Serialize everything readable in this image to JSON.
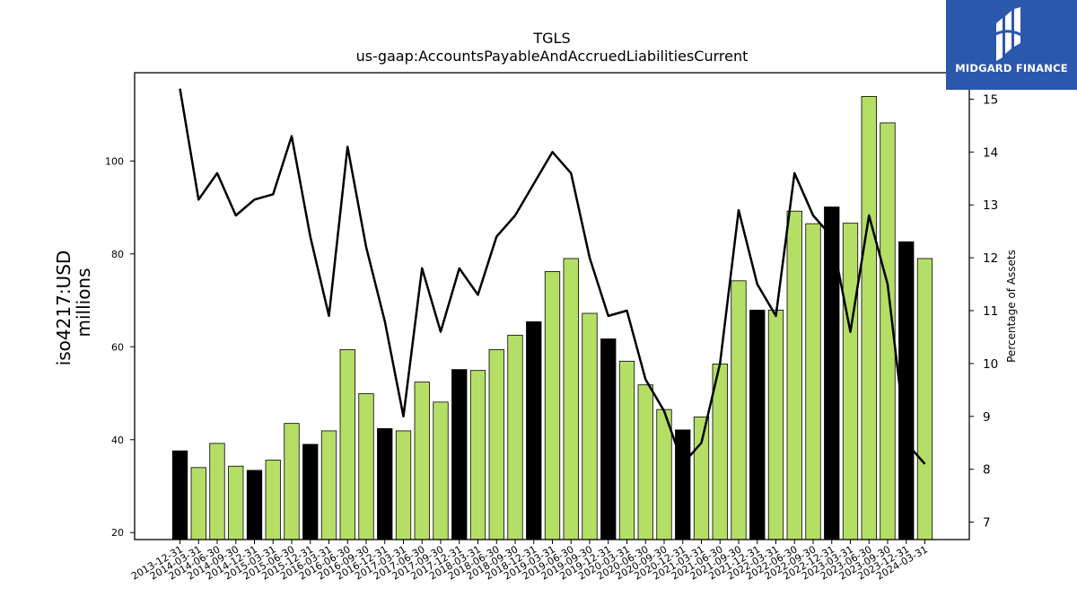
{
  "brand": {
    "name": "MIDGARD FINANCE"
  },
  "chart_data": {
    "type": "bar",
    "title": "TGLS",
    "subtitle": "us-gaap:AccountsPayableAndAccruedLiabilitiesCurrent",
    "ylabel": "iso4217:USD\nmillions",
    "y2label": "Percentage of Assets",
    "ylim": [
      18.5,
      119
    ],
    "y2lim": [
      6.67,
      15.5
    ],
    "yticks": [
      20,
      40,
      60,
      80,
      100
    ],
    "y2ticks": [
      7,
      8,
      9,
      10,
      11,
      12,
      13,
      14,
      15
    ],
    "grid": false,
    "categories": [
      "2013-12-31",
      "2014-03-31",
      "2014-06-30",
      "2014-09-30",
      "2014-12-31",
      "2015-03-31",
      "2015-06-30",
      "2015-12-31",
      "2016-03-31",
      "2016-06-30",
      "2016-09-30",
      "2016-12-31",
      "2017-03-31",
      "2017-06-30",
      "2017-09-30",
      "2017-12-31",
      "2018-03-31",
      "2018-06-30",
      "2018-09-30",
      "2018-12-31",
      "2019-03-31",
      "2019-06-30",
      "2019-09-30",
      "2019-12-31",
      "2020-03-31",
      "2020-06-30",
      "2020-09-30",
      "2020-12-31",
      "2021-03-31",
      "2021-06-30",
      "2021-09-30",
      "2021-12-31",
      "2022-03-31",
      "2022-06-30",
      "2022-09-30",
      "2022-12-31",
      "2023-03-31",
      "2023-06-30",
      "2023-09-30",
      "2023-12-31",
      "2024-03-31"
    ],
    "series": [
      {
        "type": "bar",
        "values": [
          37.6,
          34.0,
          39.2,
          34.3,
          33.4,
          35.6,
          43.5,
          39.0,
          41.9,
          59.4,
          49.9,
          42.4,
          41.9,
          52.4,
          48.1,
          55.1,
          54.9,
          59.4,
          62.5,
          65.4,
          76.2,
          79.0,
          67.2,
          61.7,
          56.9,
          51.8,
          46.5,
          42.1,
          44.9,
          56.3,
          74.2,
          67.9,
          67.9,
          89.2,
          86.5,
          90.1,
          86.6,
          113.9,
          108.2,
          82.6,
          79.0
        ],
        "colors_by_quarter": {
          "Q4": "#000000",
          "other": "#b5de66"
        }
      },
      {
        "type": "line",
        "axis": "right",
        "values": [
          15.2,
          13.1,
          13.6,
          12.8,
          13.1,
          13.2,
          14.3,
          12.4,
          10.9,
          14.1,
          12.2,
          10.8,
          9.0,
          11.8,
          10.6,
          11.8,
          11.3,
          12.4,
          12.8,
          13.4,
          14.0,
          13.6,
          12.0,
          10.9,
          11.0,
          9.7,
          9.1,
          8.1,
          8.5,
          10.0,
          12.9,
          11.5,
          10.9,
          13.6,
          12.8,
          12.4,
          10.6,
          12.8,
          11.5,
          8.5,
          8.1
        ],
        "color": "#000000"
      }
    ]
  }
}
